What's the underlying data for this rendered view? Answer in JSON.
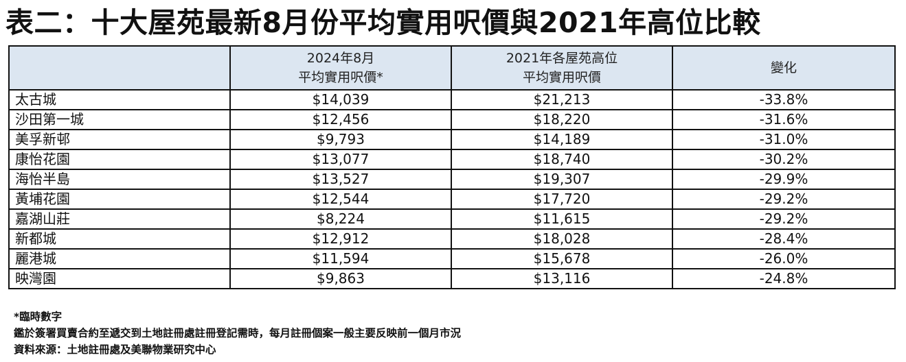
{
  "title": "表二：十大屋苑最新8月份平均實用呎價與2021年高位比較",
  "table": {
    "headers": [
      {
        "line1": "",
        "line2": ""
      },
      {
        "line1": "2024年8月",
        "line2": "平均實用呎價*"
      },
      {
        "line1": "2021年各屋苑高位",
        "line2": "平均實用呎價"
      },
      {
        "line1": "變化",
        "line2": ""
      }
    ],
    "rows": [
      {
        "name": "太古城",
        "aug2024": "$14,039",
        "high2021": "$21,213",
        "change": "-33.8%"
      },
      {
        "name": "沙田第一城",
        "aug2024": "$12,456",
        "high2021": "$18,220",
        "change": "-31.6%"
      },
      {
        "name": "美孚新邨",
        "aug2024": "$9,793",
        "high2021": "$14,189",
        "change": "-31.0%"
      },
      {
        "name": "康怡花園",
        "aug2024": "$13,077",
        "high2021": "$18,740",
        "change": "-30.2%"
      },
      {
        "name": "海怡半島",
        "aug2024": "$13,527",
        "high2021": "$19,307",
        "change": "-29.9%"
      },
      {
        "name": "黃埔花園",
        "aug2024": "$12,544",
        "high2021": "$17,720",
        "change": "-29.2%"
      },
      {
        "name": "嘉湖山莊",
        "aug2024": "$8,224",
        "high2021": "$11,615",
        "change": "-29.2%"
      },
      {
        "name": "新都城",
        "aug2024": "$12,912",
        "high2021": "$18,028",
        "change": "-28.4%"
      },
      {
        "name": "麗港城",
        "aug2024": "$11,594",
        "high2021": "$15,678",
        "change": "-26.0%"
      },
      {
        "name": "映灣園",
        "aug2024": "$9,863",
        "high2021": "$13,116",
        "change": "-24.8%"
      }
    ]
  },
  "notes": [
    "*臨時數字",
    "鑑於簽署買賣合約至遞交到土地註冊處註冊登記需時，每月註冊個案一般主要反映前一個月市況",
    "資料來源：土地註冊處及美聯物業研究中心"
  ],
  "colors": {
    "header_bg": "#dce6f1",
    "border": "#111111"
  }
}
